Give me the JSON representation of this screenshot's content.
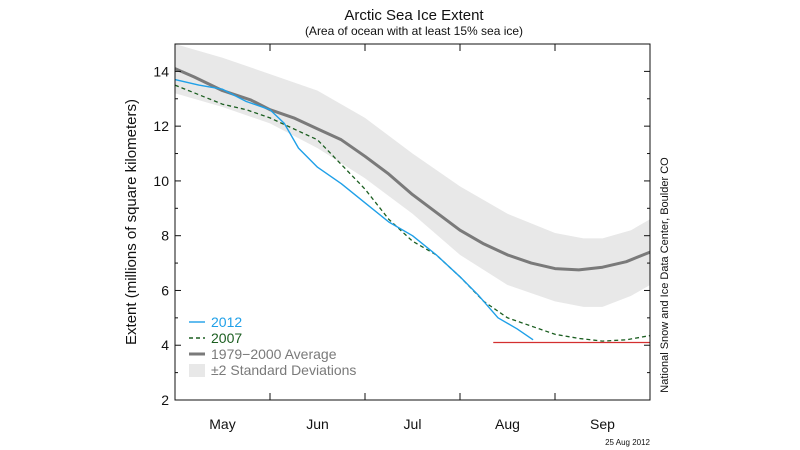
{
  "chart_data": {
    "type": "line",
    "title": "Arctic Sea Ice Extent",
    "subtitle": "(Area of ocean with at least 15% sea ice)",
    "xlabel": "",
    "ylabel": "Extent (millions of square kilometers)",
    "ylim": [
      2,
      15
    ],
    "yticks": [
      2,
      4,
      6,
      8,
      10,
      12,
      14
    ],
    "xlim": [
      0,
      5
    ],
    "month_labels": [
      {
        "label": "May",
        "x": 0.5
      },
      {
        "label": "Jun",
        "x": 1.5
      },
      {
        "label": "Jul",
        "x": 2.5
      },
      {
        "label": "Aug",
        "x": 3.5
      },
      {
        "label": "Sep",
        "x": 4.5
      }
    ],
    "month_boundaries": [
      1,
      2,
      3,
      4
    ],
    "grid": false,
    "legend_position": "bottom-left",
    "average_band": {
      "name": "±2 Standard Deviations",
      "color": "#e8e8e8",
      "x": [
        0,
        0.5,
        1.0,
        1.5,
        2.0,
        2.5,
        3.0,
        3.5,
        4.0,
        4.3,
        4.5,
        4.8,
        5.0
      ],
      "upper": [
        15.0,
        14.5,
        13.9,
        13.3,
        12.3,
        11.0,
        9.8,
        8.8,
        8.1,
        7.9,
        7.9,
        8.2,
        8.6
      ],
      "lower": [
        13.2,
        12.7,
        12.1,
        11.2,
        10.1,
        8.8,
        7.3,
        6.2,
        5.6,
        5.4,
        5.4,
        5.8,
        6.2
      ]
    },
    "series": [
      {
        "name": "1979−2000 Average",
        "color": "#7a7a7a",
        "style": "solid",
        "x": [
          0,
          0.2,
          0.5,
          0.8,
          1.0,
          1.25,
          1.5,
          1.75,
          2.0,
          2.25,
          2.5,
          2.75,
          3.0,
          3.25,
          3.5,
          3.75,
          4.0,
          4.25,
          4.5,
          4.75,
          5.0
        ],
        "y": [
          14.1,
          13.8,
          13.3,
          12.95,
          12.6,
          12.3,
          11.9,
          11.5,
          10.9,
          10.25,
          9.5,
          8.85,
          8.2,
          7.7,
          7.3,
          7.0,
          6.8,
          6.75,
          6.85,
          7.05,
          7.4
        ]
      },
      {
        "name": "2012",
        "color": "#1fa0e8",
        "style": "solid",
        "x": [
          0,
          0.25,
          0.5,
          0.75,
          1.0,
          1.15,
          1.3,
          1.5,
          1.75,
          2.0,
          2.25,
          2.5,
          2.75,
          3.0,
          3.2,
          3.4,
          3.6,
          3.77
        ],
        "y": [
          13.7,
          13.5,
          13.35,
          12.9,
          12.6,
          12.1,
          11.2,
          10.5,
          9.9,
          9.2,
          8.5,
          8.0,
          7.3,
          6.5,
          5.8,
          5.0,
          4.6,
          4.2
        ]
      },
      {
        "name": "2007",
        "color": "#1b5e20",
        "style": "dashed",
        "x": [
          0,
          0.25,
          0.5,
          0.75,
          1.0,
          1.25,
          1.5,
          1.75,
          2.0,
          2.25,
          2.5,
          2.75,
          3.0,
          3.25,
          3.5,
          3.75,
          4.0,
          4.25,
          4.5,
          4.75,
          5.0
        ],
        "y": [
          13.5,
          13.15,
          12.8,
          12.6,
          12.3,
          11.9,
          11.5,
          10.6,
          9.7,
          8.6,
          7.8,
          7.3,
          6.5,
          5.6,
          5.0,
          4.7,
          4.4,
          4.25,
          4.15,
          4.2,
          4.35
        ]
      }
    ],
    "reference_line": {
      "color": "#d32f2f",
      "y": 4.1,
      "x": [
        3.35,
        5.0
      ]
    },
    "annotations": {
      "credit": "National Snow and Ice Data Center, Boulder CO",
      "date": "25 Aug 2012"
    }
  }
}
